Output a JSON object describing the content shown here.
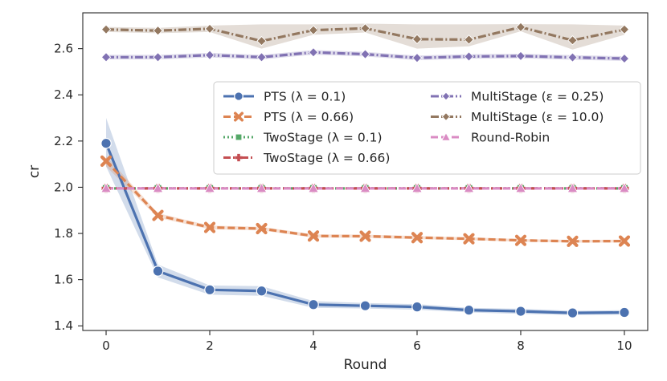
{
  "chart_data": {
    "type": "line",
    "title": "",
    "xlabel": "Round",
    "ylabel": "cr",
    "xlim": [
      -0.45,
      10.45
    ],
    "ylim": [
      1.38,
      2.755
    ],
    "xticks": [
      0,
      2,
      4,
      6,
      8,
      10
    ],
    "yticks": [
      1.4,
      1.6,
      1.8,
      2.0,
      2.2,
      2.4,
      2.6
    ],
    "ytick_labels": [
      "1.4",
      "1.6",
      "1.8",
      "2.0",
      "2.2",
      "2.4",
      "2.6"
    ],
    "x": [
      0,
      1,
      2,
      3,
      4,
      5,
      6,
      7,
      8,
      9,
      10
    ],
    "series": [
      {
        "name": "PTS (λ = 0.1)",
        "color": "#4c72b0",
        "marker": "circle",
        "dash": "solid",
        "values": [
          2.19,
          1.637,
          1.556,
          1.551,
          1.492,
          1.487,
          1.482,
          1.468,
          1.463,
          1.456,
          1.458
        ],
        "lower": [
          2.09,
          1.61,
          1.535,
          1.53,
          1.478,
          1.475,
          1.47,
          1.458,
          1.452,
          1.447,
          1.448
        ],
        "upper": [
          2.3,
          1.665,
          1.575,
          1.572,
          1.507,
          1.499,
          1.494,
          1.478,
          1.474,
          1.465,
          1.468
        ]
      },
      {
        "name": "PTS (λ = 0.66)",
        "color": "#dd8452",
        "marker": "x",
        "dash": "dashed",
        "values": [
          2.113,
          1.878,
          1.826,
          1.821,
          1.789,
          1.788,
          1.782,
          1.777,
          1.77,
          1.766,
          1.767
        ],
        "lower": [
          2.09,
          1.868,
          1.818,
          1.813,
          1.782,
          1.781,
          1.775,
          1.771,
          1.764,
          1.76,
          1.761
        ],
        "upper": [
          2.135,
          1.888,
          1.834,
          1.829,
          1.796,
          1.795,
          1.789,
          1.783,
          1.776,
          1.772,
          1.773
        ]
      },
      {
        "name": "TwoStage (λ = 0.1)",
        "color": "#55a868",
        "marker": "square",
        "dash": "dotted",
        "values": [
          1.995,
          1.995,
          1.995,
          1.995,
          1.995,
          1.995,
          1.995,
          1.995,
          1.995,
          1.995,
          1.995
        ]
      },
      {
        "name": "TwoStage (λ = 0.66)",
        "color": "#c44e52",
        "marker": "plus",
        "dash": "dashdotdot",
        "values": [
          1.995,
          1.995,
          1.995,
          1.995,
          1.995,
          1.995,
          1.995,
          1.995,
          1.995,
          1.995,
          1.995
        ]
      },
      {
        "name": "MultiStage (ε = 0.25)",
        "color": "#8172b3",
        "marker": "diamond",
        "dash": "dashdot",
        "values": [
          2.563,
          2.563,
          2.572,
          2.563,
          2.584,
          2.576,
          2.56,
          2.566,
          2.568,
          2.562,
          2.557
        ],
        "lower": [
          2.553,
          2.553,
          2.562,
          2.553,
          2.574,
          2.566,
          2.55,
          2.556,
          2.558,
          2.552,
          2.547
        ],
        "upper": [
          2.573,
          2.573,
          2.582,
          2.573,
          2.594,
          2.586,
          2.57,
          2.576,
          2.578,
          2.572,
          2.567
        ]
      },
      {
        "name": "MultiStage (ε = 10.0)",
        "color": "#937860",
        "marker": "diamond",
        "dash": "dashdot",
        "values": [
          2.683,
          2.678,
          2.686,
          2.633,
          2.68,
          2.688,
          2.641,
          2.639,
          2.693,
          2.636,
          2.683
        ],
        "lower": [
          2.672,
          2.667,
          2.672,
          2.6,
          2.66,
          2.67,
          2.6,
          2.61,
          2.675,
          2.596,
          2.66
        ],
        "upper": [
          2.694,
          2.69,
          2.7,
          2.705,
          2.705,
          2.708,
          2.705,
          2.705,
          2.706,
          2.705,
          2.7
        ]
      },
      {
        "name": "Round-Robin",
        "color": "#da8bc3",
        "marker": "triangle",
        "dash": "dashed",
        "values": [
          1.995,
          1.995,
          1.995,
          1.995,
          1.995,
          1.995,
          1.995,
          1.995,
          1.995,
          1.995,
          1.995
        ]
      }
    ],
    "legend": {
      "placement": "upper-right",
      "columns": 2,
      "order": [
        0,
        1,
        2,
        3,
        4,
        5,
        6
      ]
    },
    "grid": false
  }
}
